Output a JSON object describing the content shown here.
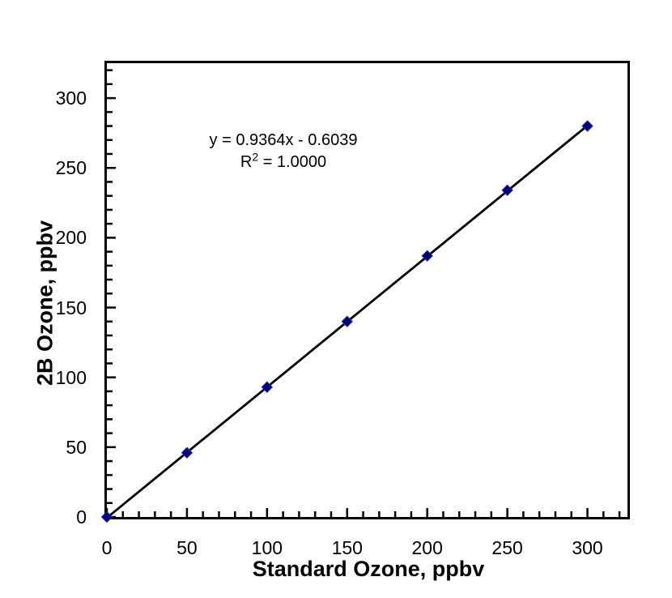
{
  "chart_data": {
    "type": "scatter",
    "title": "",
    "xlabel": "Standard Ozone, ppbv",
    "ylabel": "2B Ozone, ppbv",
    "x": [
      0,
      50,
      100,
      150,
      200,
      250,
      300
    ],
    "series": [
      {
        "name": "2B Ozone vs Standard Ozone",
        "marker": "diamond",
        "color": "#000080",
        "marker_edge_color": "#2b2b9e",
        "values": [
          0,
          46,
          93,
          140,
          187,
          234,
          280
        ]
      }
    ],
    "xlim": [
      0,
      325
    ],
    "ylim": [
      0,
      325
    ],
    "x_major_ticks": [
      0,
      50,
      100,
      150,
      200,
      250,
      300
    ],
    "y_major_ticks": [
      0,
      50,
      100,
      150,
      200,
      250,
      300
    ],
    "major_tick_step": 50,
    "minor_tick_step": 10,
    "grid": false,
    "legend_visible": false,
    "axis_color": "#000000",
    "trendline": {
      "slope": 0.9364,
      "intercept": -0.6039,
      "color": "#000000"
    },
    "annotation": {
      "equation": "y = 0.9364x - 0.6039",
      "r2_base": "R",
      "r2_sup": "2",
      "r2_rest": " = 1.0000"
    }
  },
  "colors": {
    "background": "#ffffff",
    "text": "#000000",
    "marker": "#000080"
  }
}
